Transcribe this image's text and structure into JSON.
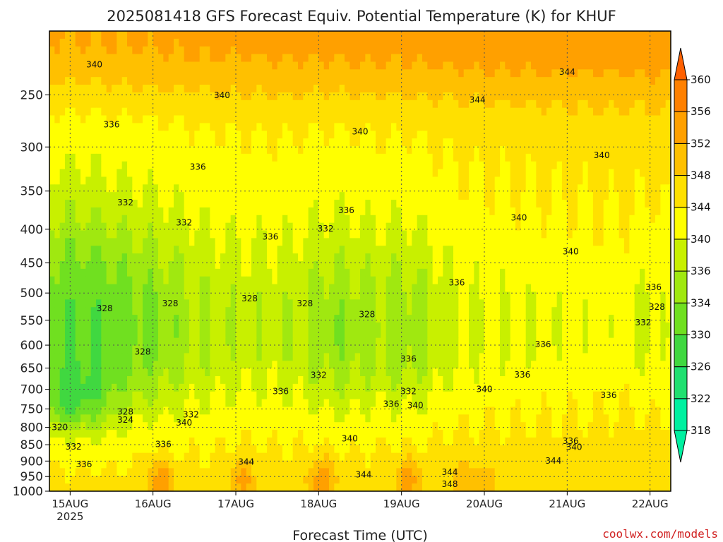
{
  "chart_data": {
    "type": "heatmap",
    "title": "2025081418 GFS Forecast Equiv. Potential Temperature (K) for KHUF",
    "xlabel": "Forecast Time (UTC)",
    "ylabel": "",
    "credit": "coolwx.com/models",
    "x_ticks": [
      {
        "label": "15AUG",
        "sub": "2025",
        "hour": 6
      },
      {
        "label": "16AUG",
        "sub": "",
        "hour": 30
      },
      {
        "label": "17AUG",
        "sub": "",
        "hour": 54
      },
      {
        "label": "18AUG",
        "sub": "",
        "hour": 78
      },
      {
        "label": "19AUG",
        "sub": "",
        "hour": 102
      },
      {
        "label": "20AUG",
        "sub": "",
        "hour": 126
      },
      {
        "label": "21AUG",
        "sub": "",
        "hour": 150
      },
      {
        "label": "22AUG",
        "sub": "",
        "hour": 174
      }
    ],
    "x_range_hours": [
      0,
      180
    ],
    "y_scale": "log",
    "y_range": [
      1000,
      200
    ],
    "y_ticks": [
      250,
      300,
      350,
      400,
      450,
      500,
      550,
      600,
      650,
      700,
      750,
      800,
      850,
      900,
      950,
      1000
    ],
    "surface_pressure": 1000,
    "grid": true,
    "colorbar": {
      "levels": [
        318,
        322,
        326,
        330,
        334,
        336,
        340,
        344,
        348,
        352,
        356,
        360
      ],
      "bounds": [
        316,
        320,
        324,
        328,
        332,
        335,
        338,
        342,
        346,
        350,
        354,
        358,
        362
      ],
      "colors": [
        "#00f0a0",
        "#20e070",
        "#40d840",
        "#70e020",
        "#a0e810",
        "#c8f000",
        "#ffff00",
        "#ffe000",
        "#ffc000",
        "#ffa000",
        "#ff8000",
        "#ff6000"
      ],
      "placement": "right"
    },
    "contour_labels": [
      {
        "v": 340,
        "h": 13,
        "p": 227
      },
      {
        "v": 340,
        "h": 50,
        "p": 253
      },
      {
        "v": 336,
        "h": 18,
        "p": 280
      },
      {
        "v": 336,
        "h": 43,
        "p": 325
      },
      {
        "v": 332,
        "h": 22,
        "p": 368
      },
      {
        "v": 332,
        "h": 39,
        "p": 395
      },
      {
        "v": 336,
        "h": 64,
        "p": 415
      },
      {
        "v": 340,
        "h": 90,
        "p": 287
      },
      {
        "v": 336,
        "h": 86,
        "p": 378
      },
      {
        "v": 332,
        "h": 80,
        "p": 403
      },
      {
        "v": 344,
        "h": 124,
        "p": 257
      },
      {
        "v": 344,
        "h": 150,
        "p": 233
      },
      {
        "v": 340,
        "h": 160,
        "p": 312
      },
      {
        "v": 340,
        "h": 136,
        "p": 388
      },
      {
        "v": 340,
        "h": 151,
        "p": 437
      },
      {
        "v": 336,
        "h": 118,
        "p": 487
      },
      {
        "v": 328,
        "h": 16,
        "p": 533
      },
      {
        "v": 328,
        "h": 35,
        "p": 524
      },
      {
        "v": 328,
        "h": 58,
        "p": 515
      },
      {
        "v": 328,
        "h": 74,
        "p": 524
      },
      {
        "v": 328,
        "h": 92,
        "p": 544
      },
      {
        "v": 328,
        "h": 27,
        "p": 620
      },
      {
        "v": 336,
        "h": 104,
        "p": 636
      },
      {
        "v": 332,
        "h": 78,
        "p": 673
      },
      {
        "v": 336,
        "h": 67,
        "p": 712
      },
      {
        "v": 332,
        "h": 104,
        "p": 712
      },
      {
        "v": 336,
        "h": 137,
        "p": 672
      },
      {
        "v": 336,
        "h": 143,
        "p": 604
      },
      {
        "v": 340,
        "h": 126,
        "p": 707
      },
      {
        "v": 336,
        "h": 162,
        "p": 722
      },
      {
        "v": 336,
        "h": 175,
        "p": 495
      },
      {
        "v": 328,
        "h": 176,
        "p": 530
      },
      {
        "v": 332,
        "h": 172,
        "p": 560
      },
      {
        "v": 328,
        "h": 22,
        "p": 765
      },
      {
        "v": 324,
        "h": 22,
        "p": 787
      },
      {
        "v": 332,
        "h": 41,
        "p": 773
      },
      {
        "v": 340,
        "h": 39,
        "p": 795
      },
      {
        "v": 336,
        "h": 33,
        "p": 857
      },
      {
        "v": 320,
        "h": 3,
        "p": 808
      },
      {
        "v": 332,
        "h": 7,
        "p": 865
      },
      {
        "v": 336,
        "h": 10,
        "p": 920
      },
      {
        "v": 344,
        "h": 57,
        "p": 912
      },
      {
        "v": 340,
        "h": 87,
        "p": 840
      },
      {
        "v": 336,
        "h": 99,
        "p": 745
      },
      {
        "v": 340,
        "h": 106,
        "p": 748
      },
      {
        "v": 344,
        "h": 91,
        "p": 953
      },
      {
        "v": 344,
        "h": 116,
        "p": 945
      },
      {
        "v": 348,
        "h": 116,
        "p": 985
      },
      {
        "v": 336,
        "h": 151,
        "p": 848
      },
      {
        "v": 340,
        "h": 152,
        "p": 866
      },
      {
        "v": 344,
        "h": 146,
        "p": 908
      }
    ]
  }
}
